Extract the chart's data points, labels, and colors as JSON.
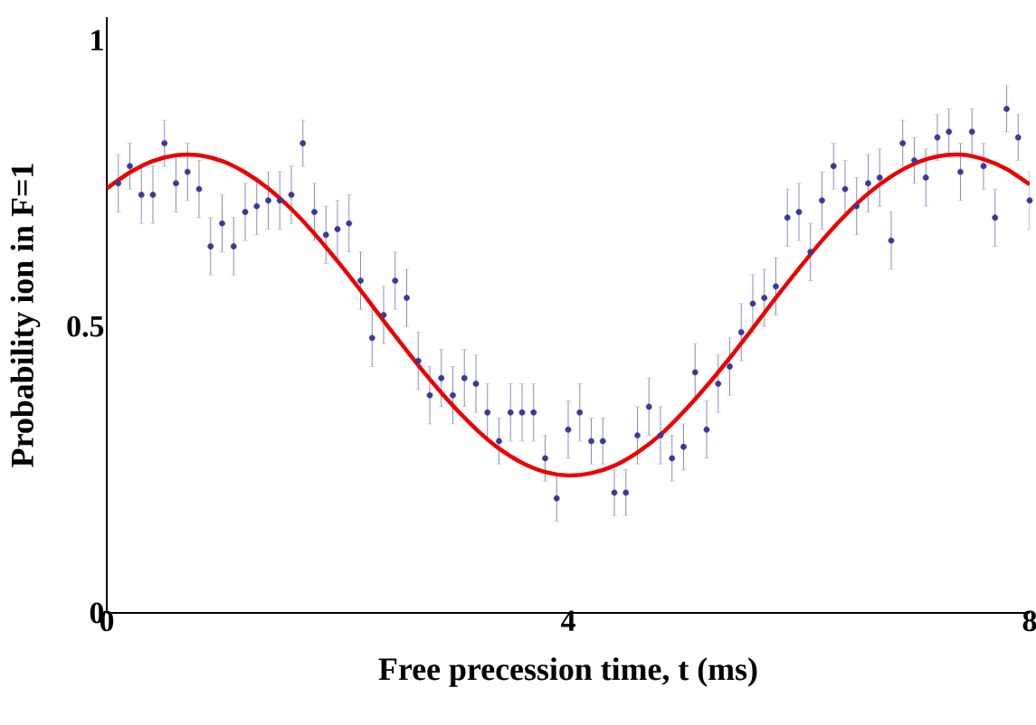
{
  "chart_data": {
    "type": "scatter",
    "xlabel": "Free precession time, t (ms)",
    "ylabel": "Probability ion in F=1",
    "xlim": [
      0,
      8
    ],
    "ylim": [
      0,
      1.04
    ],
    "xticks": [
      0,
      4,
      8
    ],
    "yticks": [
      0,
      0.5,
      1
    ],
    "series": [
      {
        "color": "#3a3a96",
        "marker": "circle",
        "x": [
          0.1,
          0.2,
          0.3,
          0.4,
          0.5,
          0.6,
          0.7,
          0.8,
          0.9,
          1.0,
          1.1,
          1.2,
          1.3,
          1.4,
          1.5,
          1.6,
          1.7,
          1.8,
          1.9,
          2.0,
          2.1,
          2.2,
          2.3,
          2.4,
          2.5,
          2.6,
          2.7,
          2.8,
          2.9,
          3.0,
          3.1,
          3.2,
          3.3,
          3.4,
          3.5,
          3.6,
          3.7,
          3.8,
          3.9,
          4.0,
          4.1,
          4.2,
          4.3,
          4.4,
          4.5,
          4.6,
          4.7,
          4.8,
          4.9,
          5.0,
          5.1,
          5.2,
          5.3,
          5.4,
          5.5,
          5.6,
          5.7,
          5.8,
          5.9,
          6.0,
          6.1,
          6.2,
          6.3,
          6.4,
          6.5,
          6.6,
          6.7,
          6.8,
          6.9,
          7.0,
          7.1,
          7.2,
          7.3,
          7.4,
          7.5,
          7.6,
          7.7,
          7.8,
          7.9,
          8.0
        ],
        "values": [
          0.75,
          0.78,
          0.73,
          0.73,
          0.82,
          0.75,
          0.77,
          0.74,
          0.64,
          0.68,
          0.64,
          0.7,
          0.71,
          0.72,
          0.72,
          0.73,
          0.82,
          0.7,
          0.66,
          0.67,
          0.68,
          0.58,
          0.48,
          0.52,
          0.58,
          0.55,
          0.44,
          0.38,
          0.41,
          0.38,
          0.41,
          0.4,
          0.35,
          0.3,
          0.35,
          0.35,
          0.35,
          0.27,
          0.2,
          0.32,
          0.35,
          0.3,
          0.3,
          0.21,
          0.21,
          0.31,
          0.36,
          0.31,
          0.27,
          0.29,
          0.42,
          0.32,
          0.4,
          0.43,
          0.49,
          0.54,
          0.55,
          0.57,
          0.69,
          0.7,
          0.63,
          0.72,
          0.78,
          0.74,
          0.71,
          0.75,
          0.76,
          0.65,
          0.82,
          0.79,
          0.76,
          0.83,
          0.84,
          0.77,
          0.84,
          0.78,
          0.69,
          0.88,
          0.83,
          0.72
        ],
        "errors": [
          0.05,
          0.04,
          0.05,
          0.05,
          0.04,
          0.05,
          0.05,
          0.05,
          0.05,
          0.05,
          0.05,
          0.05,
          0.05,
          0.05,
          0.05,
          0.05,
          0.04,
          0.05,
          0.05,
          0.05,
          0.05,
          0.05,
          0.05,
          0.05,
          0.05,
          0.05,
          0.05,
          0.05,
          0.05,
          0.05,
          0.05,
          0.05,
          0.05,
          0.04,
          0.05,
          0.05,
          0.05,
          0.04,
          0.04,
          0.05,
          0.05,
          0.04,
          0.04,
          0.04,
          0.04,
          0.05,
          0.05,
          0.05,
          0.04,
          0.04,
          0.05,
          0.05,
          0.05,
          0.05,
          0.05,
          0.05,
          0.05,
          0.05,
          0.05,
          0.05,
          0.05,
          0.05,
          0.04,
          0.05,
          0.05,
          0.05,
          0.05,
          0.05,
          0.04,
          0.04,
          0.05,
          0.04,
          0.04,
          0.05,
          0.04,
          0.04,
          0.05,
          0.04,
          0.04,
          0.05
        ]
      },
      {
        "type": "line",
        "color": "#ee0000",
        "marker": "none",
        "x": [
          0,
          0.2,
          0.4,
          0.6,
          0.8,
          1.0,
          1.2,
          1.4,
          1.6,
          1.8,
          2.0,
          2.2,
          2.4,
          2.6,
          2.8,
          3.0,
          3.2,
          3.4,
          3.6,
          3.8,
          4.0,
          4.2,
          4.4,
          4.6,
          4.8,
          5.0,
          5.2,
          5.4,
          5.6,
          5.8,
          6.0,
          6.2,
          6.4,
          6.6,
          6.8,
          7.0,
          7.2,
          7.4,
          7.6,
          7.8,
          8.0
        ],
        "values": [
          0.741,
          0.769,
          0.789,
          0.799,
          0.799,
          0.789,
          0.769,
          0.741,
          0.705,
          0.662,
          0.614,
          0.563,
          0.51,
          0.458,
          0.408,
          0.362,
          0.321,
          0.287,
          0.262,
          0.246,
          0.24,
          0.244,
          0.257,
          0.28,
          0.311,
          0.351,
          0.396,
          0.445,
          0.497,
          0.55,
          0.601,
          0.65,
          0.694,
          0.732,
          0.762,
          0.784,
          0.797,
          0.8,
          0.792,
          0.775,
          0.748
        ]
      }
    ]
  }
}
